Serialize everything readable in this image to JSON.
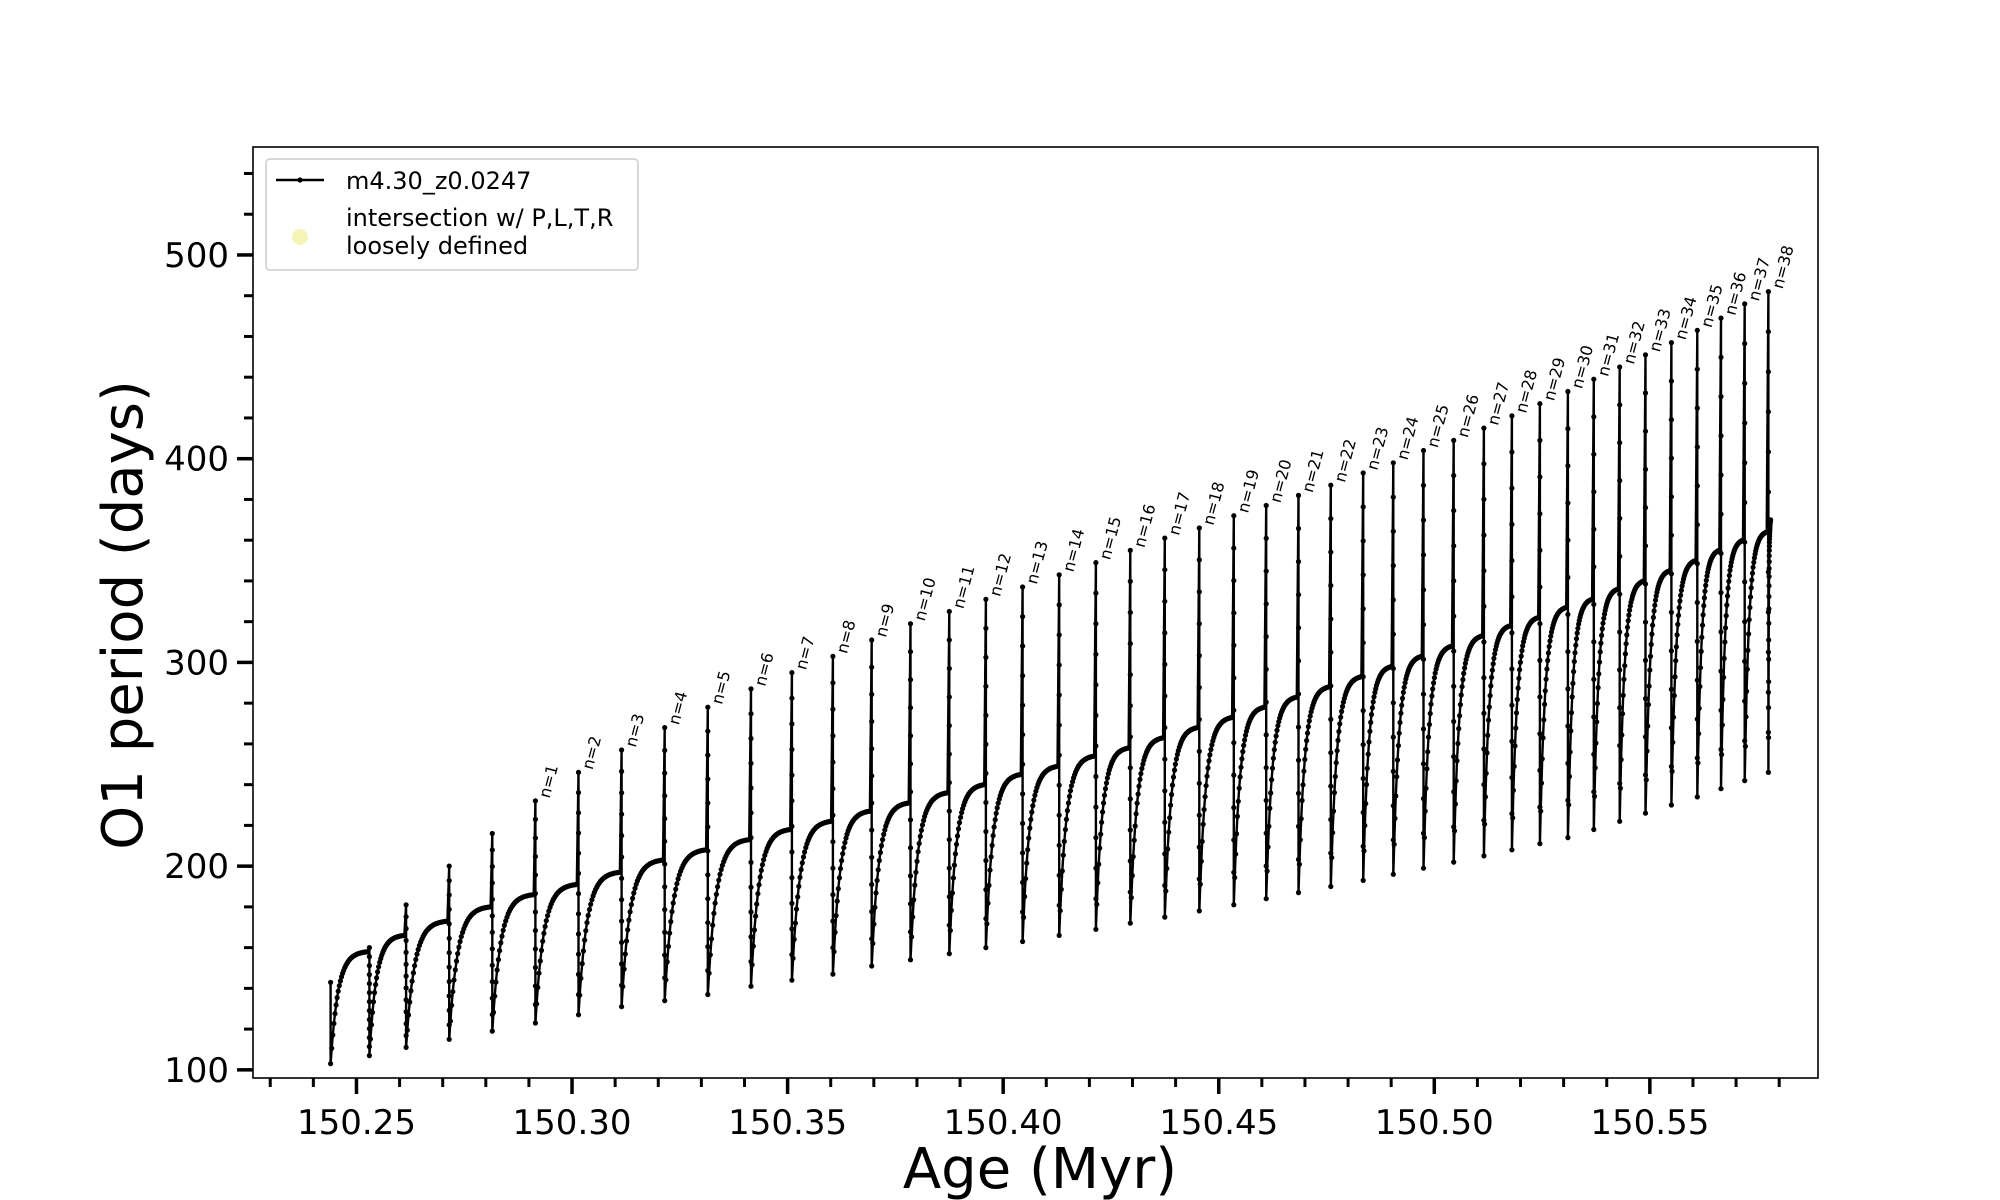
{
  "chart_data": {
    "type": "line",
    "xlabel": "Age (Myr)",
    "ylabel": "O1 period (days)",
    "xlim": [
      150.226,
      150.589
    ],
    "ylim": [
      96,
      553
    ],
    "x_ticks": [
      150.25,
      150.3,
      150.35,
      150.4,
      150.45,
      150.5,
      150.55
    ],
    "x_tick_labels": [
      "150.25",
      "150.30",
      "150.35",
      "150.40",
      "150.45",
      "150.50",
      "150.55"
    ],
    "x_minor_step": 0.01,
    "y_ticks": [
      100,
      200,
      300,
      400,
      500
    ],
    "y_tick_labels": [
      "100",
      "200",
      "300",
      "400",
      "500"
    ],
    "y_minor_step": 20,
    "grid": false,
    "legend_position": "top-left",
    "legend": [
      {
        "label": "m4.30_z0.0247",
        "marker": "line-dot",
        "color": "#000000"
      },
      {
        "label": "intersection w/ P,L,T,R loosely defined",
        "marker": "circle",
        "color": "#f5f5b8"
      }
    ],
    "series": [
      {
        "name": "m4.30_z0.0247",
        "color": "#000000",
        "start": {
          "age": 150.244,
          "period": 143
        },
        "end": {
          "age": 150.578,
          "period": 370
        },
        "pulses": [
          {
            "age": 150.244,
            "trough": 103,
            "plateau": 158
          },
          {
            "age": 150.253,
            "peak": 160,
            "trough": 107,
            "plateau": 166
          },
          {
            "age": 150.2615,
            "peak": 181,
            "trough": 111,
            "plateau": 173
          },
          {
            "age": 150.2715,
            "peak": 200,
            "trough": 115,
            "plateau": 180
          },
          {
            "age": 150.2815,
            "peak": 216,
            "trough": 119,
            "plateau": 186
          },
          {
            "age": 150.2915,
            "peak": 232,
            "trough": 123,
            "plateau": 191,
            "label": "n=1"
          },
          {
            "age": 150.3015,
            "peak": 246,
            "trough": 127,
            "plateau": 197,
            "label": "n=2"
          },
          {
            "age": 150.3115,
            "peak": 257,
            "trough": 131,
            "plateau": 203,
            "label": "n=3"
          },
          {
            "age": 150.3215,
            "peak": 268,
            "trough": 134,
            "plateau": 208,
            "label": "n=4"
          },
          {
            "age": 150.3315,
            "peak": 278,
            "trough": 137,
            "plateau": 213,
            "label": "n=5"
          },
          {
            "age": 150.3415,
            "peak": 287,
            "trough": 141,
            "plateau": 218,
            "label": "n=6"
          },
          {
            "age": 150.351,
            "peak": 295,
            "trough": 144,
            "plateau": 222,
            "label": "n=7"
          },
          {
            "age": 150.3605,
            "peak": 303,
            "trough": 147,
            "plateau": 227,
            "label": "n=8"
          },
          {
            "age": 150.3695,
            "peak": 311,
            "trough": 151,
            "plateau": 231,
            "label": "n=9"
          },
          {
            "age": 150.3785,
            "peak": 319,
            "trough": 154,
            "plateau": 236,
            "label": "n=10"
          },
          {
            "age": 150.3875,
            "peak": 325,
            "trough": 157,
            "plateau": 240,
            "label": "n=11"
          },
          {
            "age": 150.396,
            "peak": 331,
            "trough": 160,
            "plateau": 245,
            "label": "n=12"
          },
          {
            "age": 150.4045,
            "peak": 337,
            "trough": 163,
            "plateau": 249,
            "label": "n=13"
          },
          {
            "age": 150.413,
            "peak": 343,
            "trough": 166,
            "plateau": 254,
            "label": "n=14"
          },
          {
            "age": 150.4215,
            "peak": 349,
            "trough": 169,
            "plateau": 258,
            "label": "n=15"
          },
          {
            "age": 150.4295,
            "peak": 355,
            "trough": 172,
            "plateau": 263,
            "label": "n=16"
          },
          {
            "age": 150.4375,
            "peak": 361,
            "trough": 175,
            "plateau": 268,
            "label": "n=17"
          },
          {
            "age": 150.4455,
            "peak": 366,
            "trough": 178,
            "plateau": 273,
            "label": "n=18"
          },
          {
            "age": 150.4535,
            "peak": 372,
            "trough": 181,
            "plateau": 278,
            "label": "n=19"
          },
          {
            "age": 150.461,
            "peak": 377,
            "trough": 184,
            "plateau": 283,
            "label": "n=20"
          },
          {
            "age": 150.4685,
            "peak": 382,
            "trough": 187,
            "plateau": 288,
            "label": "n=21"
          },
          {
            "age": 150.476,
            "peak": 387,
            "trough": 190,
            "plateau": 293,
            "label": "n=22"
          },
          {
            "age": 150.4835,
            "peak": 393,
            "trough": 193,
            "plateau": 298,
            "label": "n=23"
          },
          {
            "age": 150.4905,
            "peak": 398,
            "trough": 196,
            "plateau": 303,
            "label": "n=24"
          },
          {
            "age": 150.4975,
            "peak": 404,
            "trough": 199,
            "plateau": 308,
            "label": "n=25"
          },
          {
            "age": 150.5045,
            "peak": 409,
            "trough": 202,
            "plateau": 313,
            "label": "n=26"
          },
          {
            "age": 150.5115,
            "peak": 415,
            "trough": 205,
            "plateau": 318,
            "label": "n=27"
          },
          {
            "age": 150.518,
            "peak": 421,
            "trough": 208,
            "plateau": 322,
            "label": "n=28"
          },
          {
            "age": 150.5245,
            "peak": 427,
            "trough": 211,
            "plateau": 327,
            "label": "n=29"
          },
          {
            "age": 150.531,
            "peak": 433,
            "trough": 214,
            "plateau": 331,
            "label": "n=30"
          },
          {
            "age": 150.537,
            "peak": 439,
            "trough": 218,
            "plateau": 336,
            "label": "n=31"
          },
          {
            "age": 150.543,
            "peak": 445,
            "trough": 222,
            "plateau": 340,
            "label": "n=32"
          },
          {
            "age": 150.549,
            "peak": 451,
            "trough": 226,
            "plateau": 345,
            "label": "n=33"
          },
          {
            "age": 150.555,
            "peak": 457,
            "trough": 230,
            "plateau": 350,
            "label": "n=34"
          },
          {
            "age": 150.561,
            "peak": 463,
            "trough": 234,
            "plateau": 355,
            "label": "n=35"
          },
          {
            "age": 150.5665,
            "peak": 469,
            "trough": 238,
            "plateau": 360,
            "label": "n=36"
          },
          {
            "age": 150.572,
            "peak": 476,
            "trough": 242,
            "plateau": 364,
            "label": "n=37"
          },
          {
            "age": 150.5775,
            "peak": 482,
            "trough": 246,
            "plateau": 368,
            "label": "n=38"
          }
        ]
      }
    ]
  }
}
